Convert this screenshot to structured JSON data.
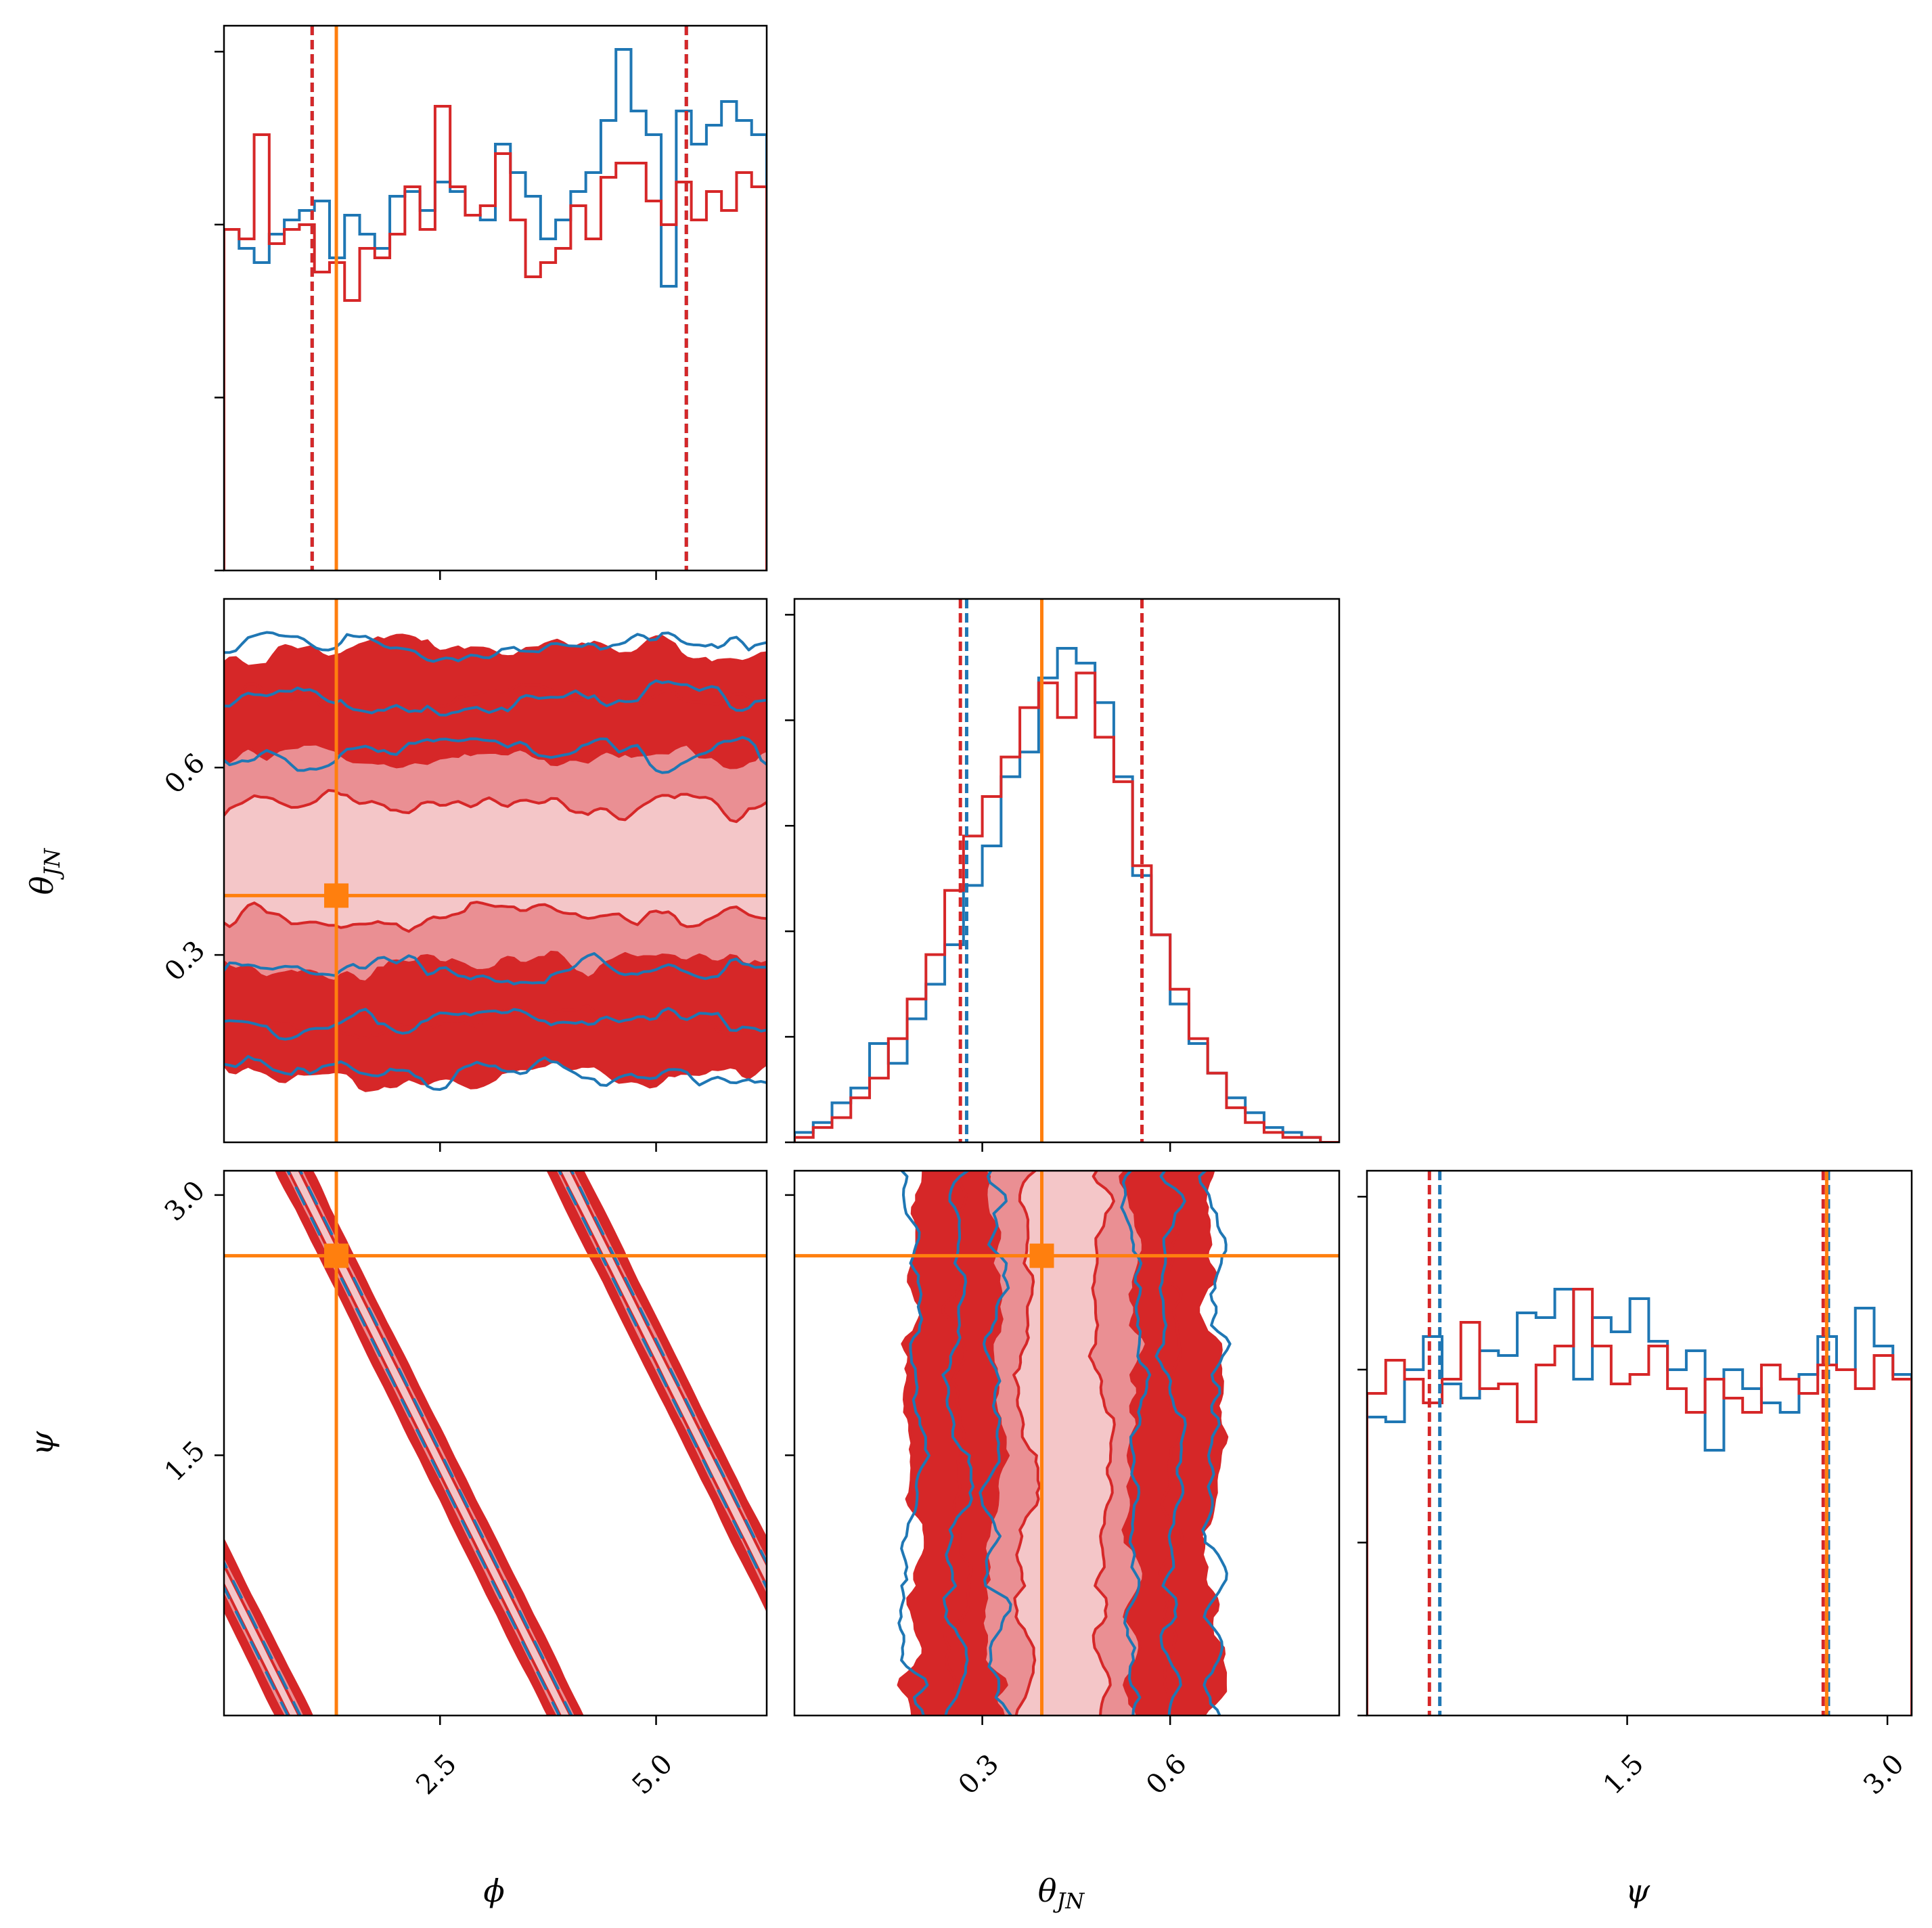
{
  "chart_data": {
    "type": "corner",
    "parameters": [
      {
        "key": "phi",
        "label": "ϕ",
        "range": [
          0.0,
          6.28
        ],
        "ticks": [
          2.5,
          5.0
        ],
        "tick_labels": [
          "2.5",
          "5.0"
        ],
        "truth": 1.3,
        "ci": {
          "blue": [
            1.02,
            5.35
          ],
          "red": [
            1.02,
            5.35
          ]
        }
      },
      {
        "key": "theta_jn",
        "label": "θ",
        "label_sub": "JN",
        "range": [
          0.0,
          0.87
        ],
        "ticks": [
          0.3,
          0.6
        ],
        "tick_labels": [
          "0.3",
          "0.6"
        ],
        "truth": 0.395,
        "ci": {
          "blue": [
            0.275,
            0.555
          ],
          "red": [
            0.265,
            0.555
          ]
        }
      },
      {
        "key": "psi",
        "label": "ψ",
        "range": [
          0.0,
          3.14
        ],
        "ticks": [
          1.5,
          3.0
        ],
        "tick_labels": [
          "1.5",
          "3.0"
        ],
        "truth": 2.65,
        "ci": {
          "blue": [
            0.42,
            2.66
          ],
          "red": [
            0.36,
            2.63
          ]
        }
      }
    ],
    "series": [
      {
        "name": "",
        "color": "#1f77b4"
      },
      {
        "name": "",
        "color": "#d62728"
      }
    ],
    "truth_color": "#ff7f0e",
    "histograms": {
      "phi": {
        "blue": [
          0.72,
          0.68,
          0.65,
          0.71,
          0.74,
          0.76,
          0.78,
          0.66,
          0.75,
          0.71,
          0.68,
          0.79,
          0.8,
          0.76,
          0.82,
          0.8,
          0.75,
          0.74,
          0.9,
          0.84,
          0.79,
          0.7,
          0.74,
          0.8,
          0.84,
          0.95,
          1.1,
          0.97,
          0.92,
          0.6,
          0.97,
          0.9,
          0.94,
          0.99,
          0.95,
          0.92
        ],
        "red": [
          0.72,
          0.7,
          0.92,
          0.69,
          0.72,
          0.73,
          0.63,
          0.65,
          0.57,
          0.68,
          0.66,
          0.71,
          0.81,
          0.72,
          0.98,
          0.81,
          0.75,
          0.77,
          0.88,
          0.74,
          0.62,
          0.65,
          0.68,
          0.77,
          0.7,
          0.83,
          0.86,
          0.86,
          0.78,
          0.73,
          0.82,
          0.74,
          0.8,
          0.76,
          0.84,
          0.81
        ]
      },
      "theta_jn": {
        "blue": [
          0.02,
          0.04,
          0.08,
          0.11,
          0.2,
          0.16,
          0.25,
          0.32,
          0.4,
          0.52,
          0.6,
          0.74,
          0.79,
          0.94,
          1.0,
          0.97,
          0.89,
          0.74,
          0.54,
          0.42,
          0.28,
          0.2,
          0.14,
          0.09,
          0.06,
          0.03,
          0.02,
          0.01,
          0.0
        ],
        "red": [
          0.01,
          0.03,
          0.05,
          0.09,
          0.13,
          0.21,
          0.29,
          0.38,
          0.51,
          0.62,
          0.7,
          0.78,
          0.88,
          0.93,
          0.86,
          0.95,
          0.82,
          0.73,
          0.56,
          0.42,
          0.31,
          0.21,
          0.14,
          0.07,
          0.04,
          0.02,
          0.01,
          0.01,
          0.0
        ]
      },
      "psi": {
        "blue": [
          0.63,
          0.62,
          0.73,
          0.8,
          0.7,
          0.67,
          0.77,
          0.76,
          0.85,
          0.84,
          0.9,
          0.71,
          0.84,
          0.81,
          0.88,
          0.79,
          0.73,
          0.77,
          0.56,
          0.73,
          0.69,
          0.66,
          0.64,
          0.72,
          0.8,
          0.73,
          0.86,
          0.78,
          0.72
        ],
        "red": [
          0.68,
          0.75,
          0.71,
          0.66,
          0.71,
          0.83,
          0.69,
          0.7,
          0.62,
          0.74,
          0.78,
          0.9,
          0.78,
          0.7,
          0.72,
          0.78,
          0.69,
          0.64,
          0.71,
          0.67,
          0.64,
          0.74,
          0.71,
          0.68,
          0.74,
          0.73,
          0.69,
          0.76,
          0.71
        ]
      }
    },
    "contours": {
      "theta_jn_vs_phi": {
        "type": "horizontal-band",
        "center_y": 0.45,
        "levels": [
          0.09,
          0.17,
          0.26,
          0.34
        ]
      },
      "psi_vs_phi": {
        "type": "diagonal-bands",
        "slope_dpsi_dphi": -1.0,
        "period_phi": 3.14,
        "levels": [
          0.06,
          0.12,
          0.2
        ]
      },
      "psi_vs_theta_jn": {
        "type": "vertical-band",
        "center_x": 0.43,
        "levels": [
          0.06,
          0.11,
          0.17,
          0.24
        ]
      }
    },
    "xlabel": "",
    "ylabel": "",
    "title": "",
    "legend": "none",
    "grid": false
  }
}
